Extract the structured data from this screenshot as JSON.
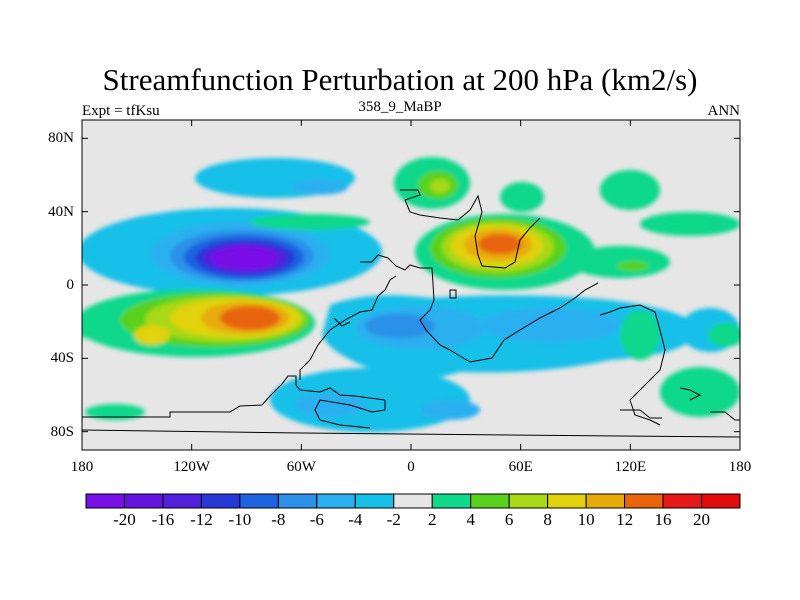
{
  "header": {
    "title": "Streamfunction Perturbation at 200 hPa (km2/s)",
    "left_label": "Expt = tfKsu",
    "center_label": "358_9_MaBP",
    "right_label": "ANN"
  },
  "chart_data": {
    "type": "heatmap",
    "title": "Streamfunction Perturbation at 200 hPa (km2/s)",
    "variable": "streamfunction perturbation",
    "units": "km2/s",
    "level": "200 hPa",
    "xlim": [
      -180,
      180
    ],
    "ylim": [
      -90,
      90
    ],
    "x_ticks": [
      {
        "value": -180,
        "label": "180"
      },
      {
        "value": -120,
        "label": "120W"
      },
      {
        "value": -60,
        "label": "60W"
      },
      {
        "value": 0,
        "label": "0"
      },
      {
        "value": 60,
        "label": "60E"
      },
      {
        "value": 120,
        "label": "120E"
      },
      {
        "value": 180,
        "label": "180"
      }
    ],
    "y_ticks": [
      {
        "value": 80,
        "label": "80N"
      },
      {
        "value": 40,
        "label": "40N"
      },
      {
        "value": 0,
        "label": "0"
      },
      {
        "value": -40,
        "label": "40S"
      },
      {
        "value": -80,
        "label": "80S"
      }
    ],
    "contour_levels": [
      -20,
      -16,
      -12,
      -10,
      -8,
      -6,
      -4,
      -2,
      2,
      4,
      6,
      8,
      10,
      12,
      16,
      20
    ],
    "colorbar_labels": [
      "-20",
      "-16",
      "-12",
      "-10",
      "-8",
      "-6",
      "-4",
      "-2",
      "2",
      "4",
      "6",
      "8",
      "10",
      "12",
      "16",
      "20"
    ],
    "colors": [
      "#7a10e8",
      "#6414e0",
      "#5020dc",
      "#2838d8",
      "#1e64e0",
      "#2a90e8",
      "#2cb0f0",
      "#18c0e8",
      "#e6e6e6",
      "#10d88c",
      "#58d21e",
      "#a8d818",
      "#e0d20c",
      "#e8aa08",
      "#e86408",
      "#e81818",
      "#e00c0c"
    ],
    "features": [
      {
        "label": "North Pacific low",
        "lon": -93,
        "lat": 15,
        "value": -20
      },
      {
        "label": "South Pacific high",
        "lon": -85,
        "lat": -17,
        "value": 16
      },
      {
        "label": "South Pacific secondary high",
        "lon": -132,
        "lat": -27,
        "value": 8
      },
      {
        "label": "Subtropical high over Africa/Asia",
        "lon": 48,
        "lat": 22,
        "value": 16
      },
      {
        "label": "High over Europe",
        "lon": 15,
        "lat": 55,
        "value": 6
      },
      {
        "label": "Low over North Atlantic",
        "lon": -50,
        "lat": 57,
        "value": -6
      },
      {
        "label": "Low over South Atlantic",
        "lon": -20,
        "lat": -20,
        "value": -6
      },
      {
        "label": "Low over Indian Ocean",
        "lon": 60,
        "lat": -20,
        "value": -4
      },
      {
        "label": "Low over Southern Ocean",
        "lon": -50,
        "lat": -68,
        "value": -4
      }
    ]
  }
}
